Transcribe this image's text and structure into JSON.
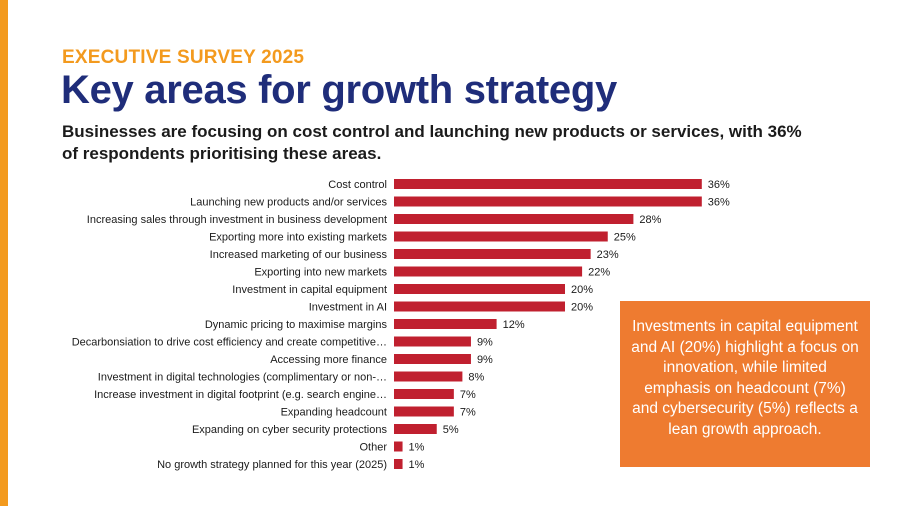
{
  "header": {
    "eyebrow": "EXECUTIVE SURVEY 2025",
    "title": "Key areas for growth strategy",
    "subtitle": "Businesses are focusing on cost control and launching new products or services, with 36% of respondents prioritising these areas."
  },
  "callout": {
    "text": "Investments in capital equipment and AI (20%) highlight a focus on innovation, while limited emphasis on headcount (7%) and cybersecurity (5%) reflects a lean growth approach."
  },
  "colors": {
    "accent": "#f39a1e",
    "title": "#1f2d7a",
    "bar": "#c0202f",
    "callout": "#ee7b30"
  },
  "chart_data": {
    "type": "bar",
    "orientation": "horizontal",
    "unit": "%",
    "categories": [
      "Cost control",
      "Launching new products and/or services",
      "Increasing sales through investment in business development",
      "Exporting more into existing markets",
      "Increased marketing of our business",
      "Exporting into new markets",
      "Investment in capital equipment",
      "Investment in AI",
      "Dynamic pricing to maximise margins",
      "Decarbonsiation to drive cost efficiency and create competitive…",
      "Accessing more finance",
      "Investment in digital technologies (complimentary or non-…",
      "Increase investment in digital footprint (e.g. search engine…",
      "Expanding headcount",
      "Expanding on cyber security protections",
      "Other",
      "No growth strategy planned for this year (2025)"
    ],
    "values": [
      36,
      36,
      28,
      25,
      23,
      22,
      20,
      20,
      12,
      9,
      9,
      8,
      7,
      7,
      5,
      1,
      1
    ],
    "xlim": [
      0,
      40
    ],
    "grid": false,
    "legend": "none"
  }
}
